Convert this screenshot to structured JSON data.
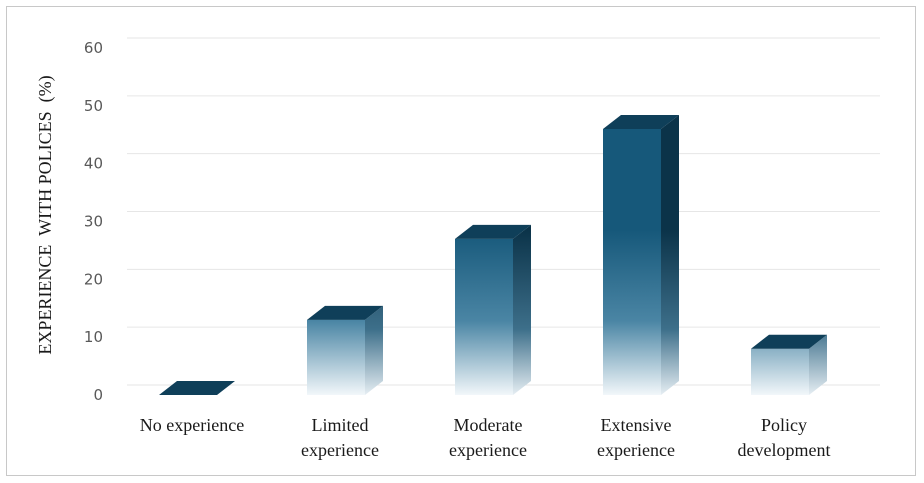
{
  "chart_data": {
    "type": "bar",
    "title": "",
    "xlabel": "",
    "ylabel": "EXPERIENCE  WITH POLICES  (%)",
    "ylim": [
      0,
      60
    ],
    "yticks": [
      0,
      10,
      20,
      30,
      40,
      50,
      60
    ],
    "categories": [
      [
        "No experience"
      ],
      [
        "Limited",
        "experience"
      ],
      [
        "Moderate",
        "experience"
      ],
      [
        "Extensive",
        "experience"
      ],
      [
        "Policy",
        "development"
      ]
    ],
    "values": [
      0,
      13,
      27,
      46,
      8
    ],
    "grid": true,
    "legend": "none",
    "style": "3d-column",
    "colors": {
      "bar_front": "#16587a",
      "bar_top": "#0f3f59",
      "bar_side": "#0b3349",
      "grid": "#e6e6e6",
      "axis_text": "#595959"
    }
  }
}
